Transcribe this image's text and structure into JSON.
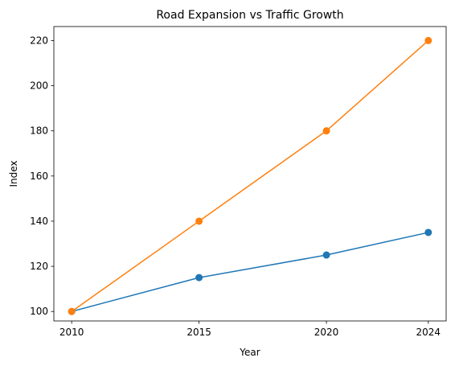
{
  "chart_data": {
    "type": "line",
    "title": "Road Expansion vs Traffic Growth",
    "xlabel": "Year",
    "ylabel": "Index",
    "x": [
      2010,
      2015,
      2020,
      2024
    ],
    "xticks": [
      "2010",
      "2015",
      "2020",
      "2024"
    ],
    "yticks": [
      "100",
      "120",
      "140",
      "160",
      "180",
      "200",
      "220"
    ],
    "xlim": [
      2009.3,
      2024.7
    ],
    "ylim": [
      95.8,
      226.2
    ],
    "grid": false,
    "legend": "none",
    "series": [
      {
        "values": [
          100,
          115,
          125,
          135
        ],
        "color": "#1f77b4",
        "marker": "circle"
      },
      {
        "values": [
          100,
          140,
          180,
          220
        ],
        "color": "#ff7f0e",
        "marker": "circle"
      }
    ]
  }
}
